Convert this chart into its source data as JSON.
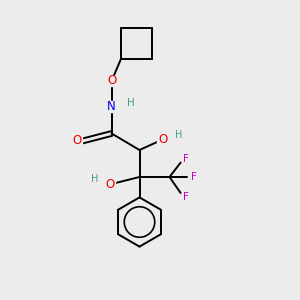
{
  "bg_color": "#ececec",
  "atom_colors": {
    "C": "#000000",
    "H": "#4a9a8a",
    "N": "#0000ee",
    "O": "#ee0000",
    "F": "#cc00cc"
  },
  "bond_color": "#000000",
  "figsize": [
    3.0,
    3.0
  ],
  "dpi": 100,
  "lw": 1.4,
  "fs": 7.5
}
